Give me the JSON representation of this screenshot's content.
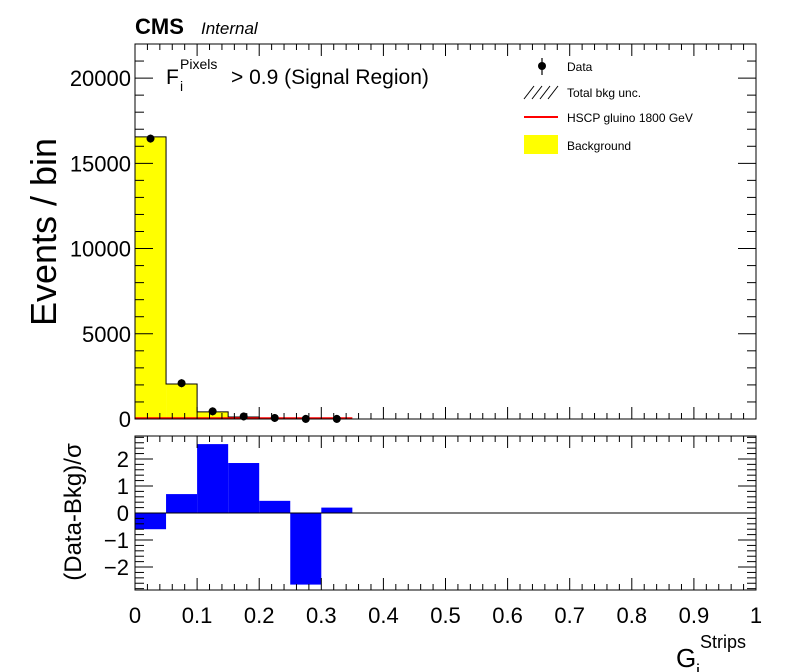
{
  "header": {
    "experiment": "CMS",
    "status": "Internal"
  },
  "annotation": {
    "base": "F",
    "sub": "i",
    "sup": "Pixels",
    "rest": "> 0.9 (Signal Region)"
  },
  "legend": {
    "data": "Data",
    "unc": "Total bkg unc.",
    "signal": "HSCP gluino 1800 GeV",
    "background": "Background"
  },
  "colors": {
    "background": "#ffff00",
    "signal": "#ff0000",
    "ratio": "#0000ff",
    "data": "#000000"
  },
  "chart_data": [
    {
      "type": "bar",
      "ylabel": "Events / bin",
      "xlim": [
        0,
        1
      ],
      "ylim": [
        0,
        22000
      ],
      "yticks": [
        0,
        5000,
        10000,
        15000,
        20000
      ],
      "bin_edges": [
        0,
        0.05,
        0.1,
        0.15,
        0.2,
        0.25,
        0.3,
        0.35
      ],
      "series": [
        {
          "name": "Background",
          "values": [
            16550,
            2050,
            420,
            120,
            55,
            20,
            0
          ]
        },
        {
          "name": "Data",
          "values": [
            16450,
            2100,
            450,
            150,
            60,
            5,
            5
          ]
        },
        {
          "name": "HSCP gluino 1800 GeV",
          "values": [
            0,
            0,
            0,
            0,
            0,
            0,
            0
          ]
        }
      ]
    },
    {
      "type": "bar",
      "ylabel": "(Data-Bkg)/σ",
      "xlabel_base": "G",
      "xlabel_sub": "i",
      "xlabel_sup": "Strips",
      "xlim": [
        0,
        1
      ],
      "ylim": [
        -2.85,
        2.85
      ],
      "yticks": [
        -2,
        -1,
        0,
        1,
        2
      ],
      "xticks": [
        "0",
        "0.1",
        "0.2",
        "0.3",
        "0.4",
        "0.5",
        "0.6",
        "0.7",
        "0.8",
        "0.9",
        "1"
      ],
      "bin_edges": [
        0,
        0.05,
        0.1,
        0.15,
        0.2,
        0.25,
        0.3,
        0.35
      ],
      "values": [
        -0.6,
        0.7,
        2.55,
        1.85,
        0.45,
        -2.65,
        0.2
      ]
    }
  ]
}
